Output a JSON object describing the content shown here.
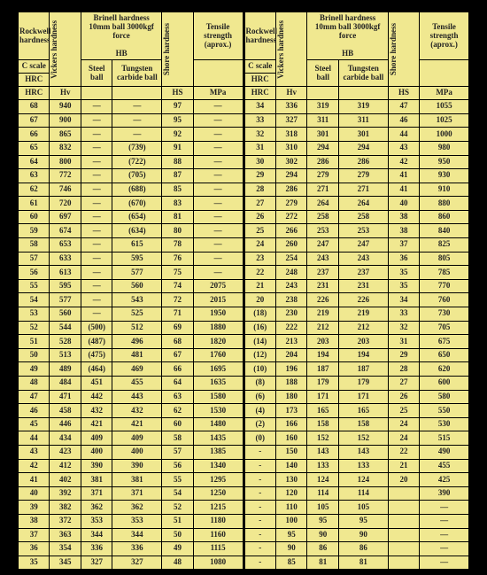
{
  "headers": {
    "rockwell": "Rockwell hardness",
    "vickers": "Vickers hardness",
    "brinell_top": "Brinell hardness 10mm ball 3000kgf force",
    "hb": "HB",
    "steel": "Steel ball",
    "tungsten": "Tungsten carbide ball",
    "shore": "Shore hardness",
    "tensile": "Tensile strength (aprox.)",
    "cscale": "C scale",
    "hrc": "HRC",
    "hv": "Hv",
    "hs": "HS",
    "mpa": "MPa"
  },
  "left_rows": [
    [
      "68",
      "940",
      "—",
      "—",
      "97",
      "—"
    ],
    [
      "67",
      "900",
      "—",
      "—",
      "95",
      "—"
    ],
    [
      "66",
      "865",
      "—",
      "—",
      "92",
      "—"
    ],
    [
      "65",
      "832",
      "—",
      "(739)",
      "91",
      "—"
    ],
    [
      "64",
      "800",
      "—",
      "(722)",
      "88",
      "—"
    ],
    [
      "63",
      "772",
      "—",
      "(705)",
      "87",
      "—"
    ],
    [
      "62",
      "746",
      "—",
      "(688)",
      "85",
      "—"
    ],
    [
      "61",
      "720",
      "—",
      "(670)",
      "83",
      "—"
    ],
    [
      "60",
      "697",
      "—",
      "(654)",
      "81",
      "—"
    ],
    [
      "59",
      "674",
      "—",
      "(634)",
      "80",
      "—"
    ],
    [
      "58",
      "653",
      "—",
      "615",
      "78",
      "—"
    ],
    [
      "57",
      "633",
      "—",
      "595",
      "76",
      "—"
    ],
    [
      "56",
      "613",
      "—",
      "577",
      "75",
      "—"
    ],
    [
      "55",
      "595",
      "—",
      "560",
      "74",
      "2075"
    ],
    [
      "54",
      "577",
      "—",
      "543",
      "72",
      "2015"
    ],
    [
      "53",
      "560",
      "—",
      "525",
      "71",
      "1950"
    ],
    [
      "52",
      "544",
      "(500)",
      "512",
      "69",
      "1880"
    ],
    [
      "51",
      "528",
      "(487)",
      "496",
      "68",
      "1820"
    ],
    [
      "50",
      "513",
      "(475)",
      "481",
      "67",
      "1760"
    ],
    [
      "49",
      "489",
      "(464)",
      "469",
      "66",
      "1695"
    ],
    [
      "48",
      "484",
      "451",
      "455",
      "64",
      "1635"
    ],
    [
      "47",
      "471",
      "442",
      "443",
      "63",
      "1580"
    ],
    [
      "46",
      "458",
      "432",
      "432",
      "62",
      "1530"
    ],
    [
      "45",
      "446",
      "421",
      "421",
      "60",
      "1480"
    ],
    [
      "44",
      "434",
      "409",
      "409",
      "58",
      "1435"
    ],
    [
      "43",
      "423",
      "400",
      "400",
      "57",
      "1385"
    ],
    [
      "42",
      "412",
      "390",
      "390",
      "56",
      "1340"
    ],
    [
      "41",
      "402",
      "381",
      "381",
      "55",
      "1295"
    ],
    [
      "40",
      "392",
      "371",
      "371",
      "54",
      "1250"
    ],
    [
      "39",
      "382",
      "362",
      "362",
      "52",
      "1215"
    ],
    [
      "38",
      "372",
      "353",
      "353",
      "51",
      "1180"
    ],
    [
      "37",
      "363",
      "344",
      "344",
      "50",
      "1160"
    ],
    [
      "36",
      "354",
      "336",
      "336",
      "49",
      "1115"
    ],
    [
      "35",
      "345",
      "327",
      "327",
      "48",
      "1080"
    ]
  ],
  "right_rows": [
    [
      "34",
      "336",
      "319",
      "319",
      "47",
      "1055"
    ],
    [
      "33",
      "327",
      "311",
      "311",
      "46",
      "1025"
    ],
    [
      "32",
      "318",
      "301",
      "301",
      "44",
      "1000"
    ],
    [
      "31",
      "310",
      "294",
      "294",
      "43",
      "980"
    ],
    [
      "30",
      "302",
      "286",
      "286",
      "42",
      "950"
    ],
    [
      "29",
      "294",
      "279",
      "279",
      "41",
      "930"
    ],
    [
      "28",
      "286",
      "271",
      "271",
      "41",
      "910"
    ],
    [
      "27",
      "279",
      "264",
      "264",
      "40",
      "880"
    ],
    [
      "26",
      "272",
      "258",
      "258",
      "38",
      "860"
    ],
    [
      "25",
      "266",
      "253",
      "253",
      "38",
      "840"
    ],
    [
      "24",
      "260",
      "247",
      "247",
      "37",
      "825"
    ],
    [
      "23",
      "254",
      "243",
      "243",
      "36",
      "805"
    ],
    [
      "22",
      "248",
      "237",
      "237",
      "35",
      "785"
    ],
    [
      "21",
      "243",
      "231",
      "231",
      "35",
      "770"
    ],
    [
      "20",
      "238",
      "226",
      "226",
      "34",
      "760"
    ],
    [
      "(18)",
      "230",
      "219",
      "219",
      "33",
      "730"
    ],
    [
      "(16)",
      "222",
      "212",
      "212",
      "32",
      "705"
    ],
    [
      "(14)",
      "213",
      "203",
      "203",
      "31",
      "675"
    ],
    [
      "(12)",
      "204",
      "194",
      "194",
      "29",
      "650"
    ],
    [
      "(10)",
      "196",
      "187",
      "187",
      "28",
      "620"
    ],
    [
      "(8)",
      "188",
      "179",
      "179",
      "27",
      "600"
    ],
    [
      "(6)",
      "180",
      "171",
      "171",
      "26",
      "580"
    ],
    [
      "(4)",
      "173",
      "165",
      "165",
      "25",
      "550"
    ],
    [
      "(2)",
      "166",
      "158",
      "158",
      "24",
      "530"
    ],
    [
      "(0)",
      "160",
      "152",
      "152",
      "24",
      "515"
    ],
    [
      "-",
      "150",
      "143",
      "143",
      "22",
      "490"
    ],
    [
      "-",
      "140",
      "133",
      "133",
      "21",
      "455"
    ],
    [
      "-",
      "130",
      "124",
      "124",
      "20",
      "425"
    ],
    [
      "-",
      "120",
      "114",
      "114",
      "",
      "390"
    ],
    [
      "-",
      "110",
      "105",
      "105",
      "",
      "—"
    ],
    [
      "-",
      "100",
      "95",
      "95",
      "",
      "—"
    ],
    [
      "-",
      "95",
      "90",
      "90",
      "",
      "—"
    ],
    [
      "-",
      "90",
      "86",
      "86",
      "",
      "—"
    ],
    [
      "-",
      "85",
      "81",
      "81",
      "",
      "—"
    ]
  ],
  "style": {
    "bg": "#f0e890",
    "border": "#000000",
    "text": "#222222"
  }
}
